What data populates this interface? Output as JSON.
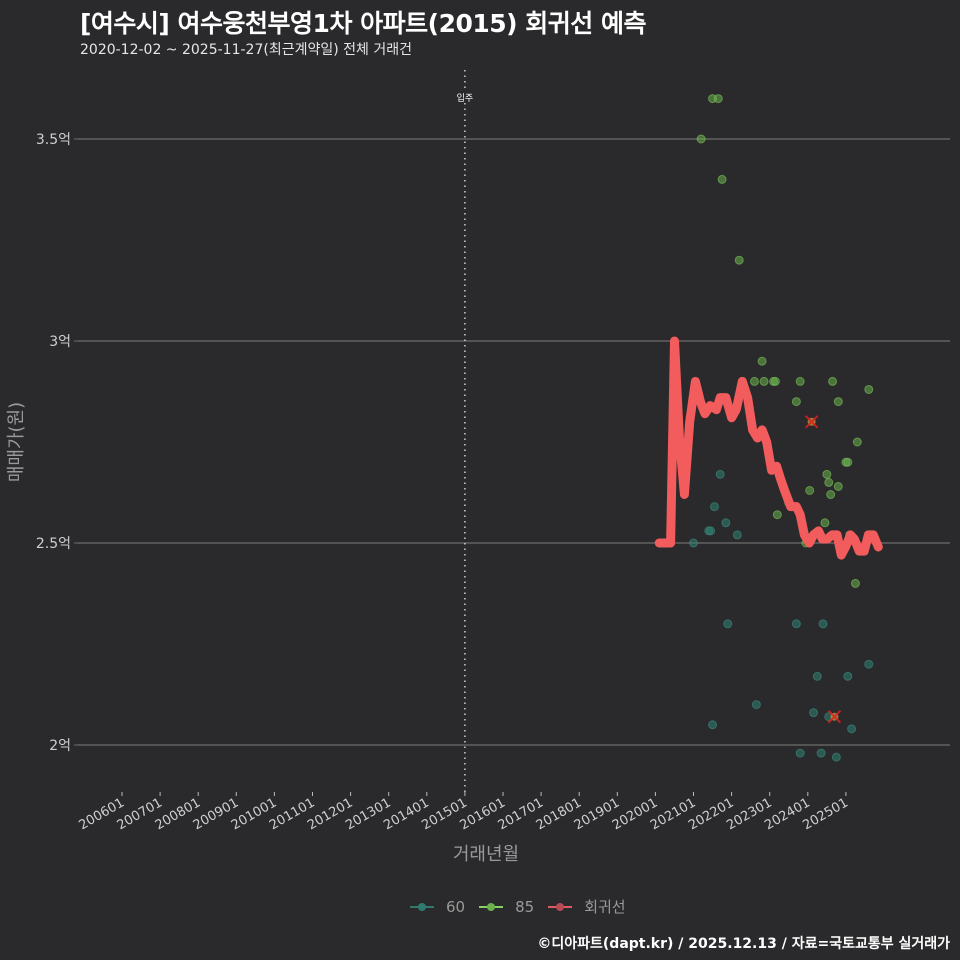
{
  "header": {
    "title": "[여수시] 여수웅천부영1차 아파트(2015) 회귀선 예측",
    "subtitle": "2020-12-02 ~ 2025-11-27(최근계약일) 전체 거래건"
  },
  "caption": "©디아파트(dapt.kr) / 2025.12.13 / 자료=국토교통부 실거래가",
  "colors": {
    "background": "#2a292b",
    "grid": "#6e6e6e",
    "series_60": "#2e7b6e",
    "series_85": "#6ab04c",
    "regression": "#f25c5c",
    "outlier_marker": "#e0201e"
  },
  "chart_data": {
    "type": "scatter",
    "title": "[여수시] 여수웅천부영1차 아파트(2015) 회귀선 예측",
    "subtitle": "2020-12-02 ~ 2025-11-27(최근계약일) 전체 거래건",
    "xlabel": "거래년월",
    "ylabel": "매매가(원)",
    "x_ticks": [
      "200601",
      "200701",
      "200801",
      "200901",
      "201001",
      "201101",
      "201201",
      "201301",
      "201401",
      "201501",
      "201601",
      "201701",
      "201801",
      "201901",
      "202001",
      "202101",
      "202201",
      "202301",
      "202401",
      "202501"
    ],
    "y_ticks": [
      "2억",
      "2.5억",
      "3억",
      "3.5억"
    ],
    "y_tick_values": [
      2.0,
      2.5,
      3.0,
      3.5
    ],
    "ylim": [
      1.88,
      3.67
    ],
    "xlim": [
      2005.5,
      2026.8
    ],
    "grid": true,
    "annotation": {
      "label": "입주",
      "x": 2015.0,
      "style": "dotted vertical line"
    },
    "legend": {
      "position": "bottom",
      "entries": [
        "60",
        "85",
        "회귀선"
      ]
    },
    "series": [
      {
        "name": "60",
        "type": "scatter",
        "points": [
          [
            2021.0,
            2.5
          ],
          [
            2021.4,
            2.53
          ],
          [
            2021.45,
            2.53
          ],
          [
            2021.5,
            2.05
          ],
          [
            2021.55,
            2.59
          ],
          [
            2021.7,
            2.67
          ],
          [
            2021.85,
            2.55
          ],
          [
            2021.9,
            2.3
          ],
          [
            2022.15,
            2.52
          ],
          [
            2022.65,
            2.1
          ],
          [
            2023.7,
            2.3
          ],
          [
            2023.8,
            1.98
          ],
          [
            2024.15,
            2.08
          ],
          [
            2024.25,
            2.17
          ],
          [
            2024.35,
            1.98
          ],
          [
            2024.4,
            2.3
          ],
          [
            2024.55,
            2.07
          ],
          [
            2024.75,
            1.97
          ],
          [
            2025.05,
            2.17
          ],
          [
            2025.15,
            2.04
          ],
          [
            2025.6,
            2.2
          ]
        ]
      },
      {
        "name": "85",
        "type": "scatter",
        "points": [
          [
            2021.2,
            3.5
          ],
          [
            2021.5,
            3.6
          ],
          [
            2021.65,
            3.6
          ],
          [
            2021.75,
            3.4
          ],
          [
            2022.2,
            3.2
          ],
          [
            2022.6,
            2.9
          ],
          [
            2022.8,
            2.95
          ],
          [
            2022.85,
            2.9
          ],
          [
            2023.1,
            2.9
          ],
          [
            2023.15,
            2.9
          ],
          [
            2023.2,
            2.57
          ],
          [
            2023.5,
            2.6
          ],
          [
            2023.7,
            2.85
          ],
          [
            2023.8,
            2.9
          ],
          [
            2023.95,
            2.5
          ],
          [
            2024.05,
            2.63
          ],
          [
            2024.45,
            2.55
          ],
          [
            2024.5,
            2.67
          ],
          [
            2024.55,
            2.65
          ],
          [
            2024.6,
            2.62
          ],
          [
            2024.65,
            2.9
          ],
          [
            2024.8,
            2.85
          ],
          [
            2024.8,
            2.64
          ],
          [
            2025.0,
            2.7
          ],
          [
            2025.05,
            2.7
          ],
          [
            2025.1,
            2.52
          ],
          [
            2025.25,
            2.4
          ],
          [
            2025.3,
            2.75
          ],
          [
            2025.6,
            2.88
          ]
        ]
      },
      {
        "name": "outliers",
        "type": "marker-x",
        "points": [
          [
            2024.1,
            2.8
          ],
          [
            2024.7,
            2.07
          ]
        ]
      },
      {
        "name": "회귀선",
        "type": "line",
        "points": [
          [
            2020.1,
            2.5
          ],
          [
            2020.4,
            2.5
          ],
          [
            2020.5,
            3.0
          ],
          [
            2020.63,
            2.76
          ],
          [
            2020.76,
            2.62
          ],
          [
            2020.9,
            2.8
          ],
          [
            2021.05,
            2.9
          ],
          [
            2021.18,
            2.85
          ],
          [
            2021.3,
            2.82
          ],
          [
            2021.44,
            2.84
          ],
          [
            2021.6,
            2.83
          ],
          [
            2021.7,
            2.86
          ],
          [
            2021.85,
            2.86
          ],
          [
            2022.0,
            2.81
          ],
          [
            2022.12,
            2.83
          ],
          [
            2022.28,
            2.9
          ],
          [
            2022.42,
            2.86
          ],
          [
            2022.55,
            2.78
          ],
          [
            2022.68,
            2.76
          ],
          [
            2022.8,
            2.78
          ],
          [
            2022.92,
            2.75
          ],
          [
            2023.05,
            2.68
          ],
          [
            2023.18,
            2.69
          ],
          [
            2023.28,
            2.66
          ],
          [
            2023.39,
            2.63
          ],
          [
            2023.55,
            2.59
          ],
          [
            2023.7,
            2.59
          ],
          [
            2023.8,
            2.57
          ],
          [
            2023.91,
            2.52
          ],
          [
            2024.04,
            2.5
          ],
          [
            2024.15,
            2.52
          ],
          [
            2024.28,
            2.53
          ],
          [
            2024.38,
            2.51
          ],
          [
            2024.51,
            2.51
          ],
          [
            2024.64,
            2.52
          ],
          [
            2024.77,
            2.52
          ],
          [
            2024.88,
            2.47
          ],
          [
            2024.99,
            2.49
          ],
          [
            2025.12,
            2.52
          ],
          [
            2025.22,
            2.51
          ],
          [
            2025.35,
            2.48
          ],
          [
            2025.48,
            2.48
          ],
          [
            2025.59,
            2.52
          ],
          [
            2025.72,
            2.52
          ],
          [
            2025.85,
            2.49
          ]
        ]
      }
    ]
  }
}
